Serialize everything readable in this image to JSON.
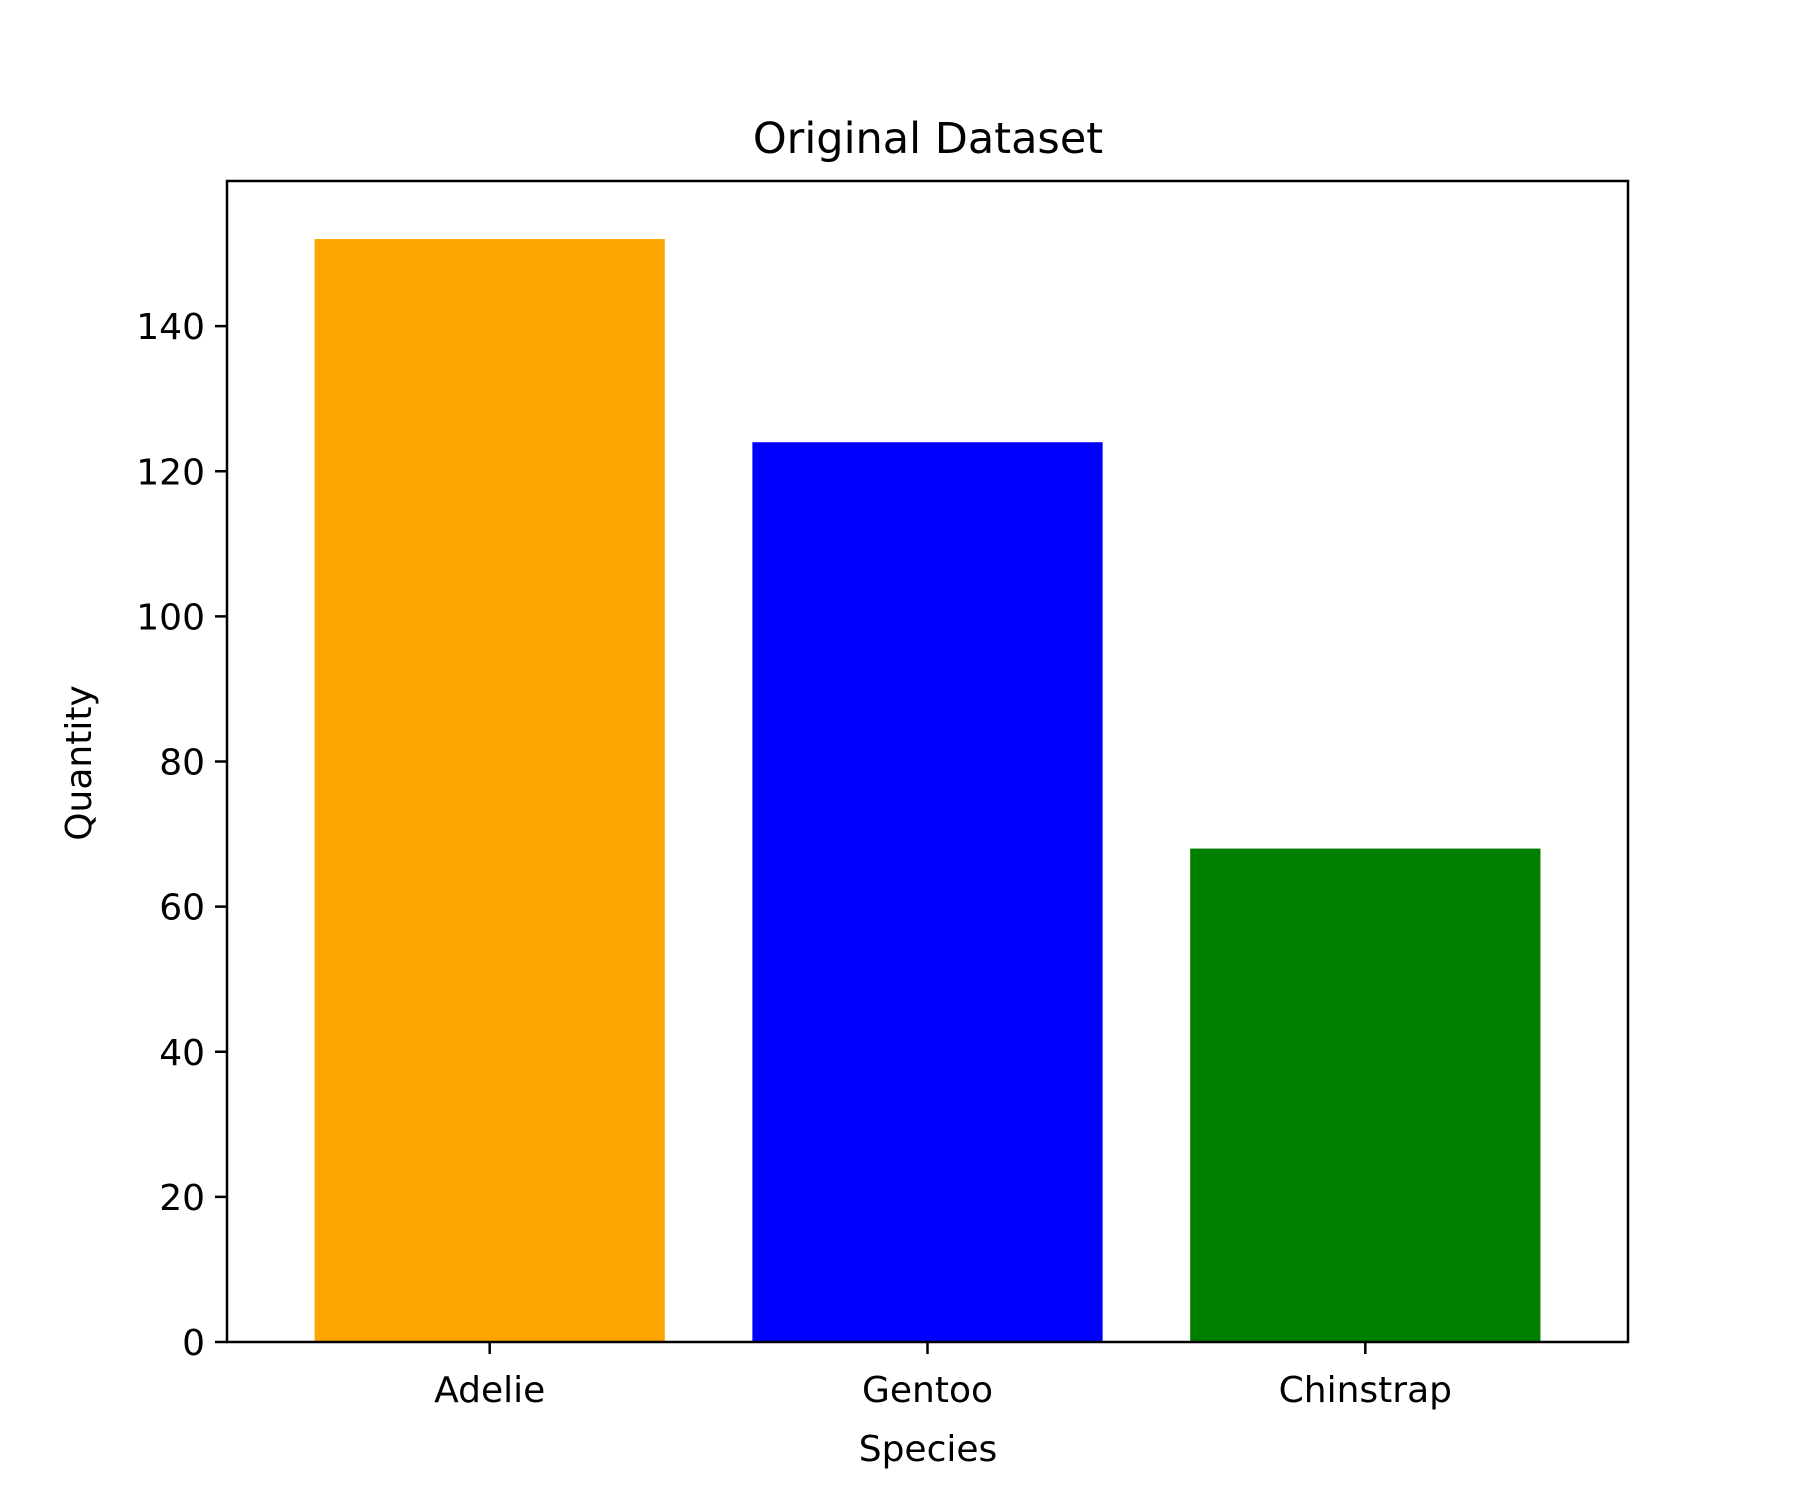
{
  "chart_data": {
    "type": "bar",
    "title": "Original Dataset",
    "xlabel": "Species",
    "ylabel": "Quantity",
    "categories": [
      "Adelie",
      "Gentoo",
      "Chinstrap"
    ],
    "values": [
      152,
      124,
      68
    ],
    "colors": [
      "#FFA500",
      "#0000FF",
      "#008000"
    ],
    "ylim": [
      0,
      160
    ],
    "yticks": [
      0,
      20,
      40,
      60,
      80,
      100,
      120,
      140
    ],
    "grid": false,
    "legend": "none"
  }
}
